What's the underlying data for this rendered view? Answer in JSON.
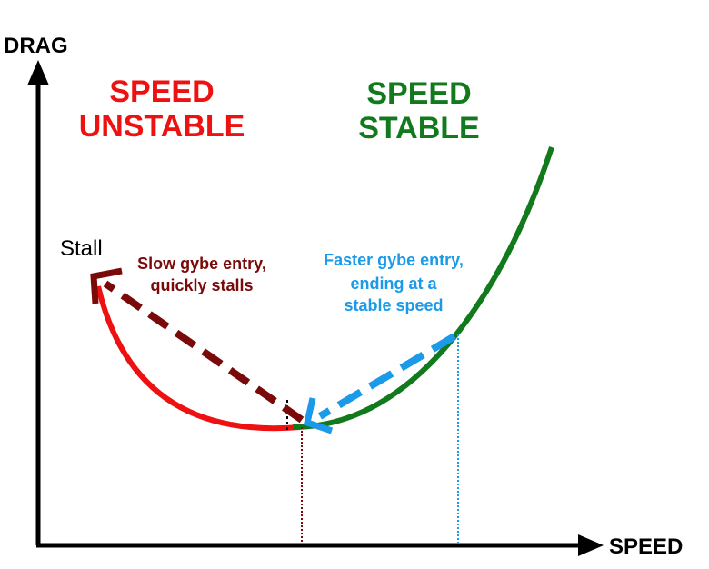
{
  "axes": {
    "y_label": "DRAG",
    "x_label": "SPEED"
  },
  "regions": {
    "unstable": {
      "line1": "SPEED",
      "line2": "UNSTABLE",
      "color": "#ee1111"
    },
    "stable": {
      "line1": "SPEED",
      "line2": "STABLE",
      "color": "#127a1c"
    }
  },
  "stall_label": "Stall",
  "slow_entry": {
    "line1": "Slow gybe entry,",
    "line2": "quickly stalls",
    "color": "#7a0a0a"
  },
  "fast_entry": {
    "line1": "Faster gybe entry,",
    "line2": "ending at a",
    "line3": "stable speed",
    "color": "#1a9ae8"
  },
  "colors": {
    "axis": "#000000",
    "curve_unstable": "#ee1111",
    "curve_stable": "#127a1c",
    "slow_arrow": "#7a0a0a",
    "fast_arrow": "#1a9ae8"
  }
}
